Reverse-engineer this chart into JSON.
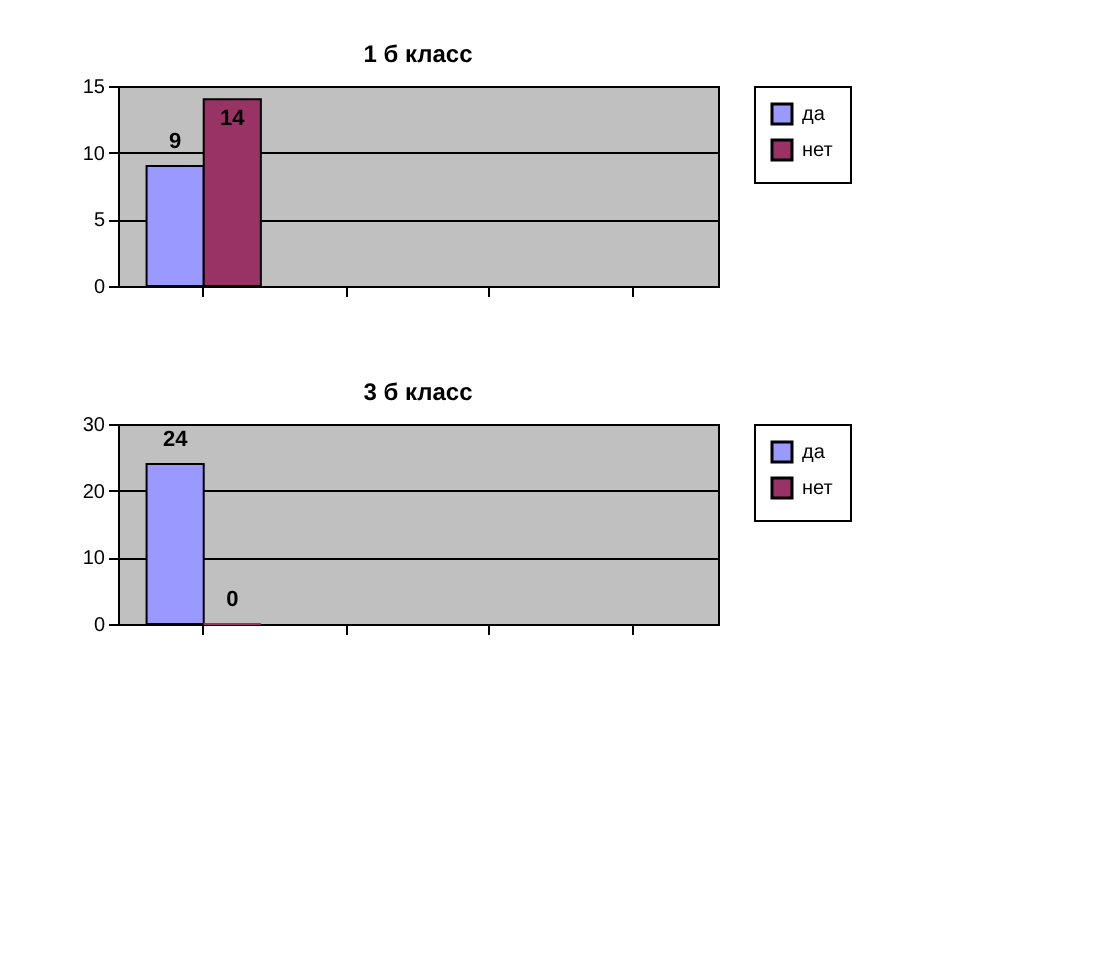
{
  "chart_data": [
    {
      "type": "bar",
      "title": "1 б класс",
      "categories": [
        null,
        null,
        null,
        null
      ],
      "series": [
        {
          "name": "да",
          "color": "#9999ff",
          "values": [
            9,
            null,
            null,
            null
          ]
        },
        {
          "name": "нет",
          "color": "#993366",
          "values": [
            14,
            null,
            null,
            null
          ]
        }
      ],
      "ylim": [
        0,
        15
      ],
      "yticks": [
        0,
        5,
        10,
        15
      ],
      "grid": "y",
      "legend": "right",
      "data_labels": true,
      "tick_labels": "y"
    },
    {
      "type": "bar",
      "title": "3 б класс",
      "categories": [
        null,
        null,
        null,
        null
      ],
      "series": [
        {
          "name": "да",
          "color": "#9999ff",
          "values": [
            24,
            null,
            null,
            null
          ]
        },
        {
          "name": "нет",
          "color": "#993366",
          "values": [
            0,
            null,
            null,
            null
          ]
        }
      ],
      "ylim": [
        0,
        30
      ],
      "yticks": [
        0,
        10,
        20,
        30
      ],
      "grid": "y",
      "legend": "right",
      "data_labels": true,
      "tick_labels": "y"
    }
  ]
}
